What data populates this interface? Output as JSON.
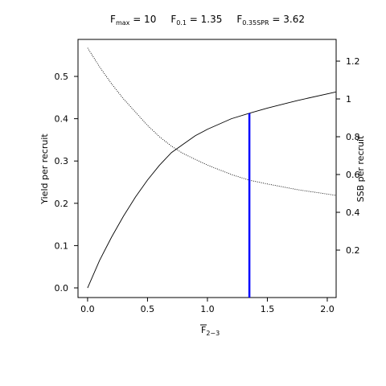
{
  "chart_data": {
    "type": "line",
    "title_parts": [
      {
        "main": "F",
        "sub": "max",
        "rest": " = 10"
      },
      {
        "main": "F",
        "sub": "0.1",
        "rest": " = 1.35"
      },
      {
        "main": "F",
        "sub": "0.35SPR",
        "rest": " = 3.62"
      }
    ],
    "x_label": {
      "main": "F",
      "sub": "2−3"
    },
    "y_label": "Yield per recruit",
    "y2_label": "SSB per recruit",
    "x": [
      0,
      0.1,
      0.2,
      0.3,
      0.4,
      0.5,
      0.6,
      0.7,
      0.8,
      0.9,
      1.0,
      1.2,
      1.35,
      1.5,
      1.75,
      2.07
    ],
    "series": [
      {
        "color": "#000000",
        "dash": "solid",
        "values": [
          0,
          0.065,
          0.12,
          0.17,
          0.215,
          0.255,
          0.29,
          0.32,
          0.34,
          0.36,
          0.375,
          0.4,
          0.413,
          0.425,
          0.443,
          0.463
        ]
      },
      {
        "color": "#000000",
        "dash": "dotted",
        "axis": "y2",
        "values": [
          1.27,
          1.17,
          1.08,
          1.0,
          0.93,
          0.86,
          0.8,
          0.75,
          0.71,
          0.68,
          0.65,
          0.6,
          0.57,
          0.55,
          0.52,
          0.49
        ]
      }
    ],
    "vline": {
      "x": 1.35,
      "y": 0.413,
      "color": "#0000ff"
    },
    "xlim": [
      -0.08,
      2.074
    ],
    "xticks": [
      {
        "value": 0,
        "label": "0.0"
      },
      {
        "value": 0.5,
        "label": "0.5"
      },
      {
        "value": 1,
        "label": "1.0"
      },
      {
        "value": 1.5,
        "label": "1.5"
      },
      {
        "value": 2,
        "label": "2.0"
      }
    ],
    "ylim": [
      -0.0228,
      0.5875
    ],
    "yticks": [
      {
        "value": 0,
        "label": "0.0"
      },
      {
        "value": 0.1,
        "label": "0.1"
      },
      {
        "value": 0.2,
        "label": "0.2"
      },
      {
        "value": 0.3,
        "label": "0.3"
      },
      {
        "value": 0.4,
        "label": "0.4"
      },
      {
        "value": 0.5,
        "label": "0.5"
      }
    ],
    "y2lim": [
      -0.051,
      1.315
    ],
    "y2ticks": [
      0.2,
      0.4,
      0.6,
      0.8,
      1,
      1.2
    ]
  }
}
